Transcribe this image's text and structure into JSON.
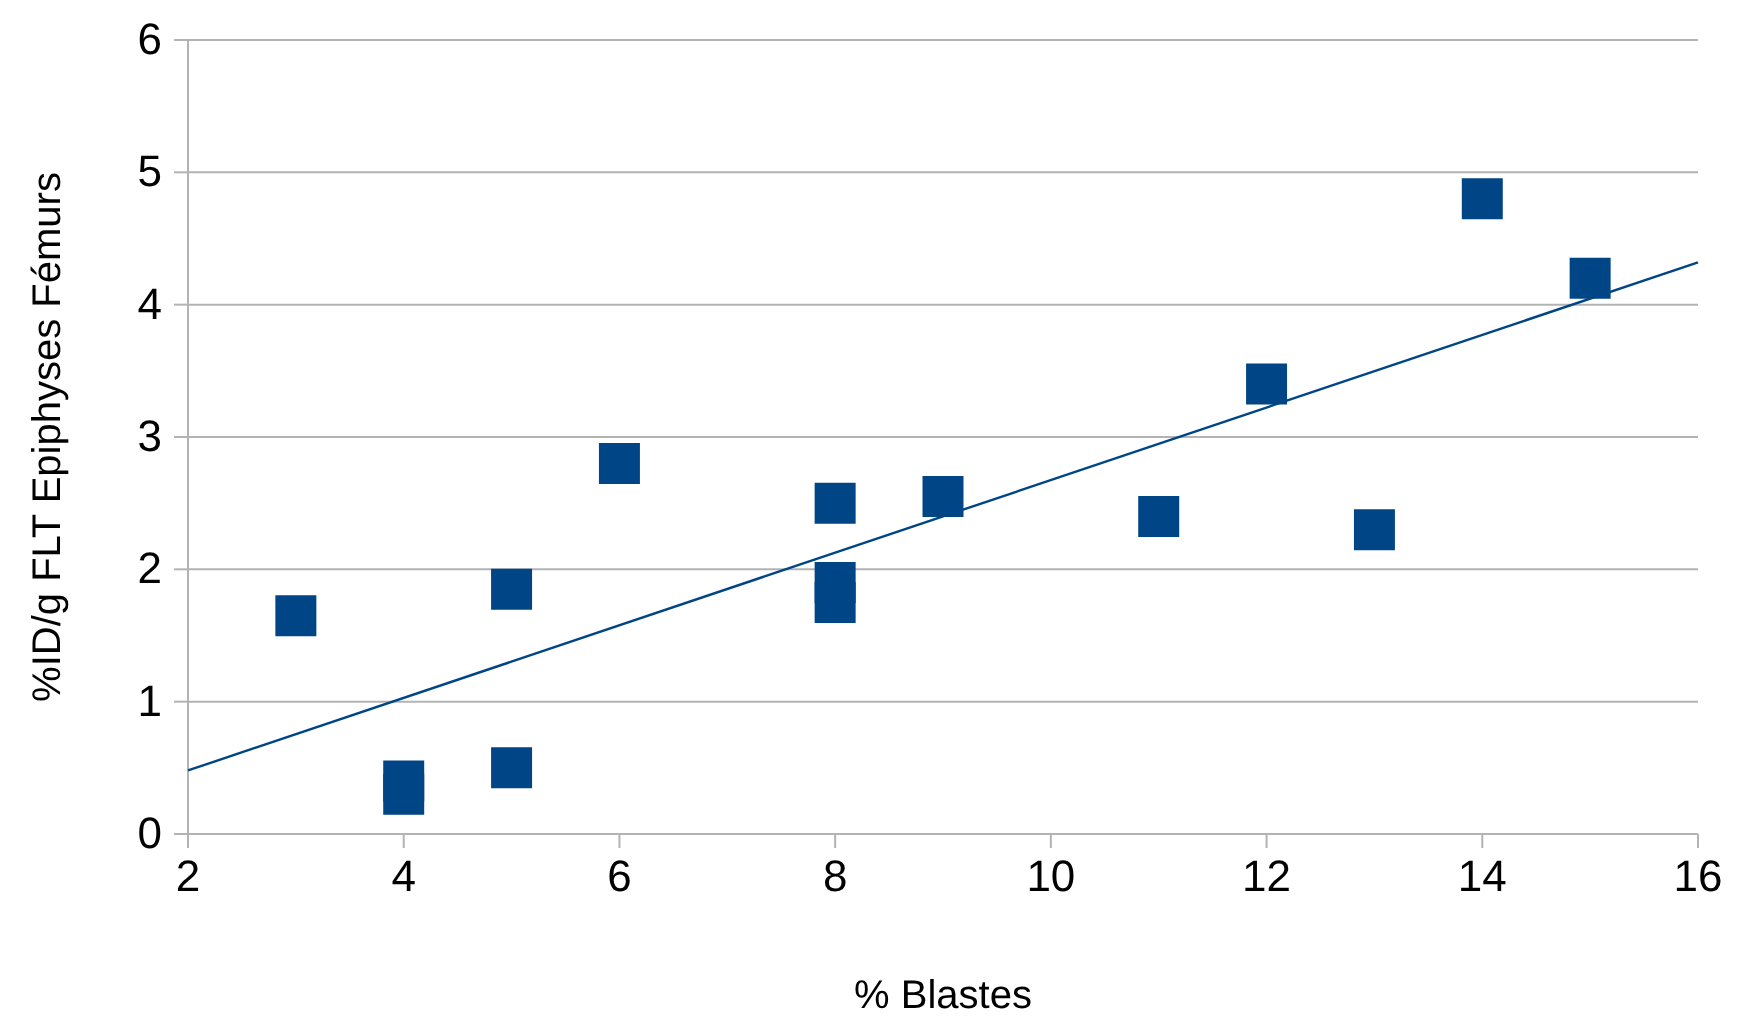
{
  "chart_data": {
    "type": "scatter",
    "xlabel": "% Blastes",
    "ylabel": "%ID/g FLT Epiphyses Fémurs",
    "xlim": [
      2,
      16
    ],
    "xticks": [
      2,
      4,
      6,
      8,
      10,
      12,
      14,
      16
    ],
    "ylim": [
      0,
      6
    ],
    "yticks": [
      0,
      1,
      2,
      3,
      4,
      5,
      6
    ],
    "grid": "y",
    "series": [
      {
        "color": "#004586",
        "marker": "square",
        "x": [
          3,
          4,
          4,
          5,
          5,
          6,
          8,
          8,
          8,
          9,
          11,
          12,
          13,
          14,
          15
        ],
        "values": [
          1.65,
          0.4,
          0.3,
          1.85,
          0.5,
          2.8,
          2.5,
          1.9,
          1.75,
          2.55,
          2.4,
          3.4,
          2.3,
          4.8,
          4.2
        ]
      },
      {
        "type": "line",
        "color": "#004586",
        "x": [
          2,
          16
        ],
        "values": [
          0.48,
          4.32
        ]
      }
    ]
  }
}
